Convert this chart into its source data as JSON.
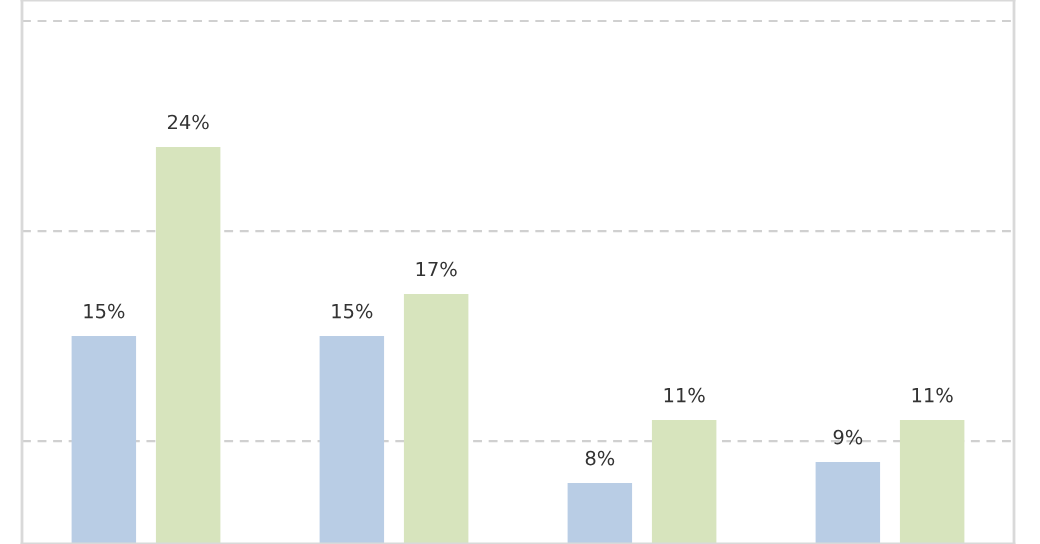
{
  "chart_data": {
    "type": "bar",
    "categories": [
      null,
      null,
      null,
      null
    ],
    "series": [
      {
        "color": "#b9cde5",
        "values": [
          15,
          15,
          8,
          9
        ],
        "value_labels": [
          "15%",
          "15%",
          "8%",
          "9%"
        ]
      },
      {
        "color": "#d7e4bd",
        "values": [
          24,
          17,
          11,
          11
        ],
        "value_labels": [
          "24%",
          "17%",
          "11%",
          "11%"
        ]
      }
    ],
    "ylim": [
      5.1,
      31
    ],
    "yticks": [
      {
        "value": 10,
        "label": null
      },
      {
        "value": 20,
        "label": null
      },
      {
        "value": 30,
        "label": null
      }
    ],
    "grid": "y"
  }
}
